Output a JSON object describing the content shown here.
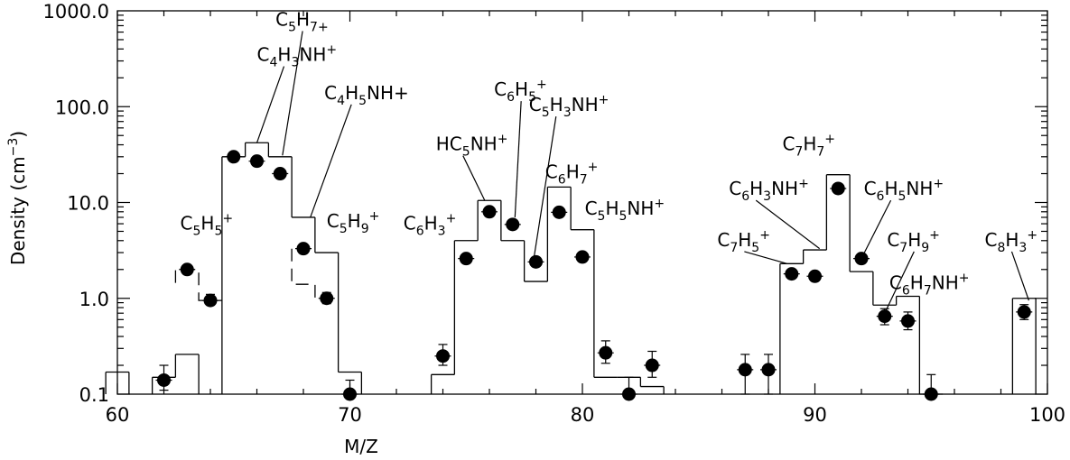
{
  "chart_data": {
    "type": "scatter",
    "title": "",
    "xlabel": "M/Z",
    "ylabel_text": "Density (cm",
    "ylabel_sup": "−3",
    "ylabel_close": ")",
    "xlim": [
      60,
      100
    ],
    "ylim": [
      0.1,
      1000
    ],
    "yscale": "log",
    "x_ticks": [
      60,
      70,
      80,
      90,
      100
    ],
    "x_tick_labels": [
      "60",
      "70",
      "80",
      "90",
      "100"
    ],
    "y_ticks": [
      0.1,
      1,
      10,
      100,
      1000
    ],
    "y_tick_labels": [
      "0.1",
      "1.0",
      "10.0",
      "100.0",
      "1000.0"
    ],
    "series": [
      {
        "role": "measured",
        "style": "filled circles with error bars",
        "x": [
          62,
          63,
          64,
          65,
          66,
          67,
          68,
          69,
          70,
          74,
          75,
          76,
          77,
          78,
          79,
          80,
          81,
          82,
          83,
          87,
          88,
          89,
          90,
          91,
          92,
          93,
          94,
          95,
          99
        ],
        "y": [
          0.14,
          2.0,
          0.95,
          30,
          27,
          20,
          3.3,
          1.0,
          0.09,
          0.25,
          2.6,
          8.0,
          5.9,
          2.4,
          7.9,
          2.7,
          0.27,
          0.095,
          0.2,
          0.18,
          0.18,
          1.8,
          1.7,
          14,
          2.6,
          0.65,
          0.58,
          0.1,
          0.72
        ],
        "err_low": [
          0.11,
          1.85,
          0.85,
          28,
          25,
          18.5,
          3.0,
          0.88,
          0.09,
          0.2,
          2.45,
          7.6,
          5.6,
          2.25,
          7.5,
          2.55,
          0.21,
          0.095,
          0.15,
          0.1,
          0.1,
          1.65,
          1.55,
          13.5,
          2.45,
          0.53,
          0.47,
          0.1,
          0.6
        ],
        "err_high": [
          0.2,
          2.2,
          1.1,
          32,
          29,
          22,
          3.6,
          1.15,
          0.14,
          0.33,
          2.8,
          8.5,
          6.3,
          2.55,
          8.4,
          2.9,
          0.36,
          0.15,
          0.28,
          0.26,
          0.26,
          2.0,
          1.9,
          15,
          2.8,
          0.78,
          0.72,
          0.16,
          0.86
        ]
      },
      {
        "role": "model",
        "style": "solid histogram",
        "values": [
          [
            59.5,
            0.17
          ],
          [
            61.5,
            0.15
          ],
          [
            62.5,
            0.26
          ],
          [
            64.5,
            30
          ],
          [
            65.5,
            42
          ],
          [
            66.5,
            30
          ],
          [
            67.5,
            7
          ],
          [
            68.5,
            3
          ],
          [
            69.5,
            0.17
          ],
          [
            73.5,
            0.16
          ],
          [
            74.5,
            4
          ],
          [
            75.5,
            10.5
          ],
          [
            76.5,
            4
          ],
          [
            77.5,
            1.5
          ],
          [
            78.5,
            14.5
          ],
          [
            79.5,
            5.2
          ],
          [
            80.5,
            0.15
          ],
          [
            81.5,
            0.15
          ],
          [
            82.5,
            0.12
          ],
          [
            88.5,
            2.3
          ],
          [
            89.5,
            3.2
          ],
          [
            90.5,
            19.5
          ],
          [
            91.5,
            1.9
          ],
          [
            92.5,
            0.85
          ],
          [
            93.5,
            1.05
          ],
          [
            94.5,
            0.1
          ],
          [
            98.5,
            1.0
          ]
        ]
      },
      {
        "role": "model-dashed",
        "style": "dashed step",
        "values": [
          [
            62.5,
            1.45
          ],
          [
            62.5,
            2.0
          ],
          [
            63.5,
            2.0
          ],
          [
            63.5,
            0.95
          ],
          [
            64.5,
            0.95
          ]
        ],
        "segment2": [
          [
            67.5,
            3.3
          ],
          [
            67.5,
            1.4
          ],
          [
            68.5,
            1.4
          ],
          [
            68.5,
            1.0
          ]
        ]
      }
    ],
    "annotations": [
      {
        "x": 62.7,
        "y": 5.2,
        "text": "C5H5+",
        "parts": [
          [
            "C",
            ""
          ],
          [
            "5",
            "sub"
          ],
          [
            "H",
            ""
          ],
          [
            "5",
            "sub"
          ],
          [
            "+",
            "sup"
          ]
        ],
        "line_to": null
      },
      {
        "x": 66.0,
        "y": 300,
        "text": "C4H3NH+",
        "parts": [
          [
            "C",
            ""
          ],
          [
            "4",
            "sub"
          ],
          [
            "H",
            ""
          ],
          [
            "3",
            "sub"
          ],
          [
            "NH",
            ""
          ],
          [
            "+",
            "sup"
          ]
        ],
        "line_to": [
          66.0,
          42
        ]
      },
      {
        "x": 66.8,
        "y": 700,
        "text": "C5H7+",
        "parts": [
          [
            "C",
            ""
          ],
          [
            "5",
            "sub"
          ],
          [
            "H",
            ""
          ],
          [
            "7",
            "sub"
          ],
          [
            "+",
            "sub"
          ]
        ],
        "line_to": [
          67.1,
          31
        ]
      },
      {
        "x": 68.9,
        "y": 120,
        "text": "C4H5NH+",
        "parts": [
          [
            "C",
            ""
          ],
          [
            "4",
            "sub"
          ],
          [
            "H",
            ""
          ],
          [
            "5",
            "sub"
          ],
          [
            "NH+",
            ""
          ]
        ],
        "line_to": [
          68.3,
          7
        ]
      },
      {
        "x": 69.0,
        "y": 5.5,
        "text": "C5H9+",
        "parts": [
          [
            "C",
            ""
          ],
          [
            "5",
            "sub"
          ],
          [
            "H",
            ""
          ],
          [
            "9",
            "sub"
          ],
          [
            "+",
            "sup"
          ]
        ],
        "line_to": null
      },
      {
        "x": 72.3,
        "y": 5.2,
        "text": "C6H3+",
        "parts": [
          [
            "C",
            ""
          ],
          [
            "6",
            "sub"
          ],
          [
            "H",
            ""
          ],
          [
            "3",
            "sub"
          ],
          [
            "+",
            "sup"
          ]
        ],
        "line_to": null
      },
      {
        "x": 73.7,
        "y": 35,
        "text": "HC5NH+",
        "parts": [
          [
            "HC",
            ""
          ],
          [
            "5",
            "sub"
          ],
          [
            "NH",
            ""
          ],
          [
            "+",
            "sup"
          ]
        ],
        "line_to": [
          75.8,
          10.5
        ]
      },
      {
        "x": 76.2,
        "y": 130,
        "text": "C6H5+",
        "parts": [
          [
            "C",
            ""
          ],
          [
            "6",
            "sub"
          ],
          [
            "H",
            ""
          ],
          [
            "5",
            "sub"
          ],
          [
            "+",
            "sup"
          ]
        ],
        "line_to": [
          77.1,
          7
        ]
      },
      {
        "x": 77.7,
        "y": 90,
        "text": "C5H3NH+",
        "parts": [
          [
            "C",
            ""
          ],
          [
            "5",
            "sub"
          ],
          [
            "H",
            ""
          ],
          [
            "3",
            "sub"
          ],
          [
            "NH",
            ""
          ],
          [
            "+",
            "sup"
          ]
        ],
        "line_to": [
          77.9,
          2.5
        ]
      },
      {
        "x": 78.4,
        "y": 18,
        "text": "C6H7+",
        "parts": [
          [
            "C",
            ""
          ],
          [
            "6",
            "sub"
          ],
          [
            "H",
            ""
          ],
          [
            "7",
            "sub"
          ],
          [
            "+",
            "sup"
          ]
        ],
        "line_to": null
      },
      {
        "x": 80.1,
        "y": 7.5,
        "text": "C5H5NH+",
        "parts": [
          [
            "C",
            ""
          ],
          [
            "5",
            "sub"
          ],
          [
            "H",
            ""
          ],
          [
            "5",
            "sub"
          ],
          [
            "NH",
            ""
          ],
          [
            "+",
            "sup"
          ]
        ],
        "line_to": null
      },
      {
        "x": 88.6,
        "y": 35,
        "text": "C7H7+",
        "parts": [
          [
            "C",
            ""
          ],
          [
            "7",
            "sub"
          ],
          [
            "H",
            ""
          ],
          [
            "7",
            "sub"
          ],
          [
            "+",
            "sup"
          ]
        ],
        "line_to": null
      },
      {
        "x": 86.3,
        "y": 12,
        "text": "C6H3NH+",
        "parts": [
          [
            "C",
            ""
          ],
          [
            "6",
            "sub"
          ],
          [
            "H",
            ""
          ],
          [
            "3",
            "sub"
          ],
          [
            "NH",
            ""
          ],
          [
            "+",
            "sup"
          ]
        ],
        "line_to": [
          90.2,
          3.3
        ]
      },
      {
        "x": 92.1,
        "y": 12,
        "text": "C6H5NH+",
        "parts": [
          [
            "C",
            ""
          ],
          [
            "6",
            "sub"
          ],
          [
            "H",
            ""
          ],
          [
            "5",
            "sub"
          ],
          [
            "NH",
            ""
          ],
          [
            "+",
            "sup"
          ]
        ],
        "line_to": [
          92.0,
          2.6
        ]
      },
      {
        "x": 85.8,
        "y": 3.5,
        "text": "C7H5+",
        "parts": [
          [
            "C",
            ""
          ],
          [
            "7",
            "sub"
          ],
          [
            "H",
            ""
          ],
          [
            "5",
            "sub"
          ],
          [
            "+",
            "sup"
          ]
        ],
        "line_to": [
          88.8,
          2.3
        ]
      },
      {
        "x": 93.1,
        "y": 3.5,
        "text": "C7H9+",
        "parts": [
          [
            "C",
            ""
          ],
          [
            "7",
            "sub"
          ],
          [
            "H",
            ""
          ],
          [
            "9",
            "sub"
          ],
          [
            "+",
            "sup"
          ]
        ],
        "line_to": [
          93.0,
          0.7
        ]
      },
      {
        "x": 93.2,
        "y": 1.25,
        "text": "C6H7NH+",
        "parts": [
          [
            "C",
            ""
          ],
          [
            "6",
            "sub"
          ],
          [
            "H",
            ""
          ],
          [
            "7",
            "sub"
          ],
          [
            "NH",
            ""
          ],
          [
            "+",
            "sup"
          ]
        ],
        "line_to": null
      },
      {
        "x": 97.3,
        "y": 3.5,
        "text": "C8H3+",
        "parts": [
          [
            "C",
            ""
          ],
          [
            "8",
            "sub"
          ],
          [
            "H",
            ""
          ],
          [
            "3",
            "sub"
          ],
          [
            "+",
            "sup"
          ]
        ],
        "line_to": [
          99.2,
          0.95
        ]
      }
    ]
  }
}
